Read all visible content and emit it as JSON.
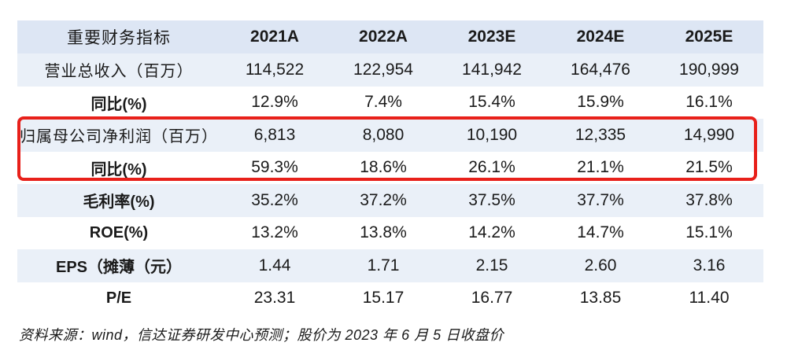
{
  "table": {
    "header": [
      "重要财务指标",
      "2021A",
      "2022A",
      "2023E",
      "2024E",
      "2025E"
    ],
    "rows": [
      {
        "label": "营业总收入（百万）",
        "values": [
          "114,522",
          "122,954",
          "141,942",
          "164,476",
          "190,999"
        ]
      },
      {
        "label": "同比(%)",
        "values": [
          "12.9%",
          "7.4%",
          "15.4%",
          "15.9%",
          "16.1%"
        ]
      },
      {
        "label": "归属母公司净利润（百万）",
        "values": [
          "6,813",
          "8,080",
          "10,190",
          "12,335",
          "14,990"
        ]
      },
      {
        "label": "同比(%)",
        "values": [
          "59.3%",
          "18.6%",
          "26.1%",
          "21.1%",
          "21.5%"
        ]
      },
      {
        "label": "毛利率(%)",
        "values": [
          "35.2%",
          "37.2%",
          "37.5%",
          "37.7%",
          "37.8%"
        ]
      },
      {
        "label": "ROE(%)",
        "values": [
          "13.2%",
          "13.8%",
          "14.2%",
          "14.7%",
          "15.1%"
        ]
      },
      {
        "label": "EPS（摊薄（元）",
        "values": [
          "1.44",
          "1.71",
          "2.15",
          "2.60",
          "3.16"
        ]
      },
      {
        "label": "P/E",
        "values": [
          "23.31",
          "15.17",
          "16.77",
          "13.85",
          "11.40"
        ]
      }
    ]
  },
  "highlight_color": "#e8201a",
  "header_bg": "#dde6f4",
  "alt_row_bg": "#eaf0f8",
  "source": "资料来源：wind，信达证券研发中心预测；股价为 2023 年 6 月 5 日收盘价"
}
